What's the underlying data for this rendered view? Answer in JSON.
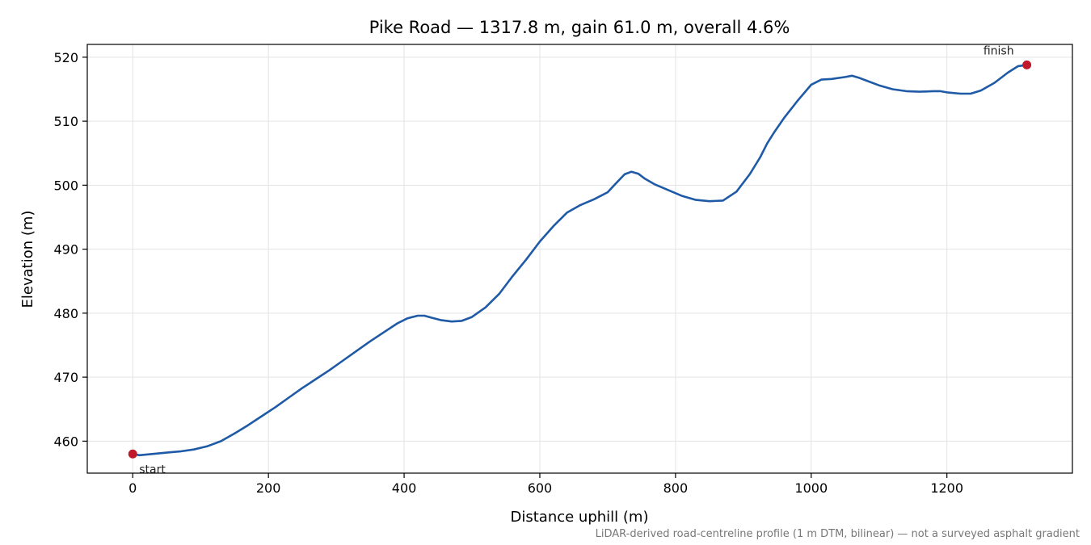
{
  "chart_data": {
    "type": "line",
    "title": "Pike Road — 1317.8 m, gain 61.0 m, overall 4.6%",
    "xlabel": "Distance uphill (m)",
    "ylabel": "Elevation (m)",
    "xlim": [
      -67,
      1385
    ],
    "ylim": [
      455,
      522
    ],
    "xticks": [
      0,
      200,
      400,
      600,
      800,
      1000,
      1200
    ],
    "yticks": [
      460,
      470,
      480,
      490,
      500,
      510,
      520
    ],
    "grid": true,
    "line_color": "#1f5aa6",
    "marker_color": "#c0192b",
    "series": [
      {
        "x": [
          0,
          10,
          30,
          50,
          70,
          90,
          110,
          130,
          150,
          170,
          190,
          210,
          230,
          250,
          270,
          290,
          310,
          330,
          350,
          370,
          390,
          405,
          420,
          430,
          440,
          455,
          470,
          485,
          500,
          520,
          540,
          560,
          580,
          600,
          620,
          640,
          660,
          680,
          700,
          715,
          725,
          735,
          745,
          755,
          770,
          790,
          810,
          830,
          850,
          870,
          890,
          910,
          925,
          935,
          945,
          960,
          980,
          1000,
          1015,
          1030,
          1050,
          1060,
          1070,
          1080,
          1100,
          1120,
          1140,
          1160,
          1180,
          1190,
          1200,
          1220,
          1235,
          1250,
          1270,
          1290,
          1305,
          1317.8
        ],
        "y": [
          458.0,
          457.8,
          458.0,
          458.2,
          458.4,
          458.7,
          459.2,
          460.0,
          461.2,
          462.5,
          463.9,
          465.3,
          466.8,
          468.3,
          469.7,
          471.1,
          472.6,
          474.1,
          475.6,
          477.0,
          478.4,
          479.2,
          479.6,
          479.6,
          479.3,
          478.9,
          478.7,
          478.8,
          479.4,
          480.9,
          483.0,
          485.8,
          488.4,
          491.2,
          493.6,
          495.7,
          496.9,
          497.8,
          498.9,
          500.6,
          501.7,
          502.1,
          501.8,
          501.0,
          500.1,
          499.2,
          498.3,
          497.7,
          497.5,
          497.6,
          499.0,
          501.8,
          504.4,
          506.5,
          508.2,
          510.5,
          513.2,
          515.7,
          516.5,
          516.6,
          516.9,
          517.1,
          516.8,
          516.4,
          515.6,
          515.0,
          514.7,
          514.6,
          514.7,
          514.7,
          514.5,
          514.3,
          514.3,
          514.8,
          516.0,
          517.6,
          518.6,
          518.8
        ]
      }
    ],
    "points": [
      {
        "x": 0,
        "y": 458.0,
        "label": "start"
      },
      {
        "x": 1317.8,
        "y": 518.8,
        "label": "finish"
      }
    ],
    "footnote": "LiDAR-derived road-centreline profile (1 m DTM, bilinear) — not a surveyed asphalt gradient"
  }
}
